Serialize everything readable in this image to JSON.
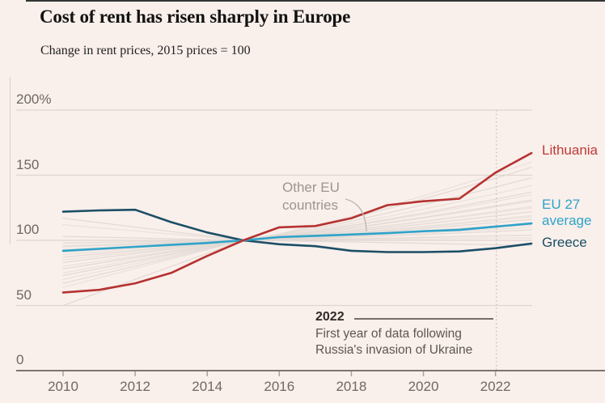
{
  "chart_data": {
    "type": "line",
    "title": "Cost of rent has risen sharply in Europe",
    "subtitle": "Change in rent prices, 2015 prices = 100",
    "x": [
      2010,
      2011,
      2012,
      2013,
      2014,
      2015,
      2016,
      2017,
      2018,
      2019,
      2020,
      2021,
      2022,
      2023
    ],
    "series": [
      {
        "name": "Lithuania",
        "color": "#b53231",
        "values": [
          60,
          62,
          67,
          75,
          88,
          100,
          110,
          111,
          117,
          127,
          130,
          132,
          152,
          167
        ]
      },
      {
        "name": "EU 27 average",
        "color": "#2ea3c9",
        "values": [
          92,
          93.5,
          95,
          96.5,
          98,
          100,
          102.5,
          103.5,
          104.5,
          105.5,
          107,
          108,
          110.5,
          113
        ]
      },
      {
        "name": "Greece",
        "color": "#1b4f66",
        "values": [
          122,
          123,
          123.5,
          114,
          106,
          100,
          97,
          95.5,
          92,
          91,
          91,
          91.5,
          94,
          97.5
        ]
      }
    ],
    "other_eu_countries": {
      "label": "Other EU countries",
      "color": "#e1d9d4",
      "note": "values pass through 100 in 2015",
      "endpoints_2010_2023": [
        [
          50,
          96
        ],
        [
          64,
          118
        ],
        [
          67,
          104
        ],
        [
          70,
          126
        ],
        [
          73,
          112
        ],
        [
          75,
          135
        ],
        [
          78,
          122
        ],
        [
          80,
          142
        ],
        [
          83,
          116
        ],
        [
          85,
          130
        ],
        [
          87,
          108
        ],
        [
          89,
          125
        ],
        [
          91,
          137
        ],
        [
          93,
          119
        ],
        [
          95,
          148
        ],
        [
          96,
          110
        ],
        [
          98,
          131
        ],
        [
          100,
          102
        ],
        [
          103,
          156
        ],
        [
          112,
          160
        ],
        [
          117,
          113
        ]
      ]
    },
    "ytick_labels": [
      "200%",
      "150",
      "100",
      "50",
      "0"
    ],
    "ytick_values": [
      200,
      150,
      100,
      50,
      0
    ],
    "xtick_labels": [
      "2010",
      "2012",
      "2014",
      "2016",
      "2018",
      "2020",
      "2022"
    ],
    "xtick_values": [
      2010,
      2012,
      2014,
      2016,
      2018,
      2020,
      2022
    ],
    "ylim": [
      0,
      200
    ],
    "xlim": [
      2010,
      2023
    ],
    "grid": true,
    "legend_position": "right-of-line-ends",
    "event_marker_x": 2022
  },
  "legend": {
    "lithuania": "Lithuania",
    "eu27_line1": "EU 27",
    "eu27_line2": "average",
    "greece": "Greece"
  },
  "annotations": {
    "other_eu_line1": "Other EU",
    "other_eu_line2": "countries",
    "event_year": "2022",
    "event_desc_line1": "First year of data following",
    "event_desc_line2": "Russia's invasion of Ukraine"
  },
  "colors": {
    "background": "#f9efeb",
    "red": "#b53231",
    "red_text": "#c03a34",
    "light_blue": "#2ea3c9",
    "dark_blue": "#1b4f66",
    "gray_series": "#e1d9d4",
    "gridline": "#ded5d0",
    "axis": "#7c766f",
    "tick": "#aaa39c",
    "dotted_rule": "#c7beb7",
    "connector": "#bfb7b0",
    "event_rule": "#4a4540"
  }
}
